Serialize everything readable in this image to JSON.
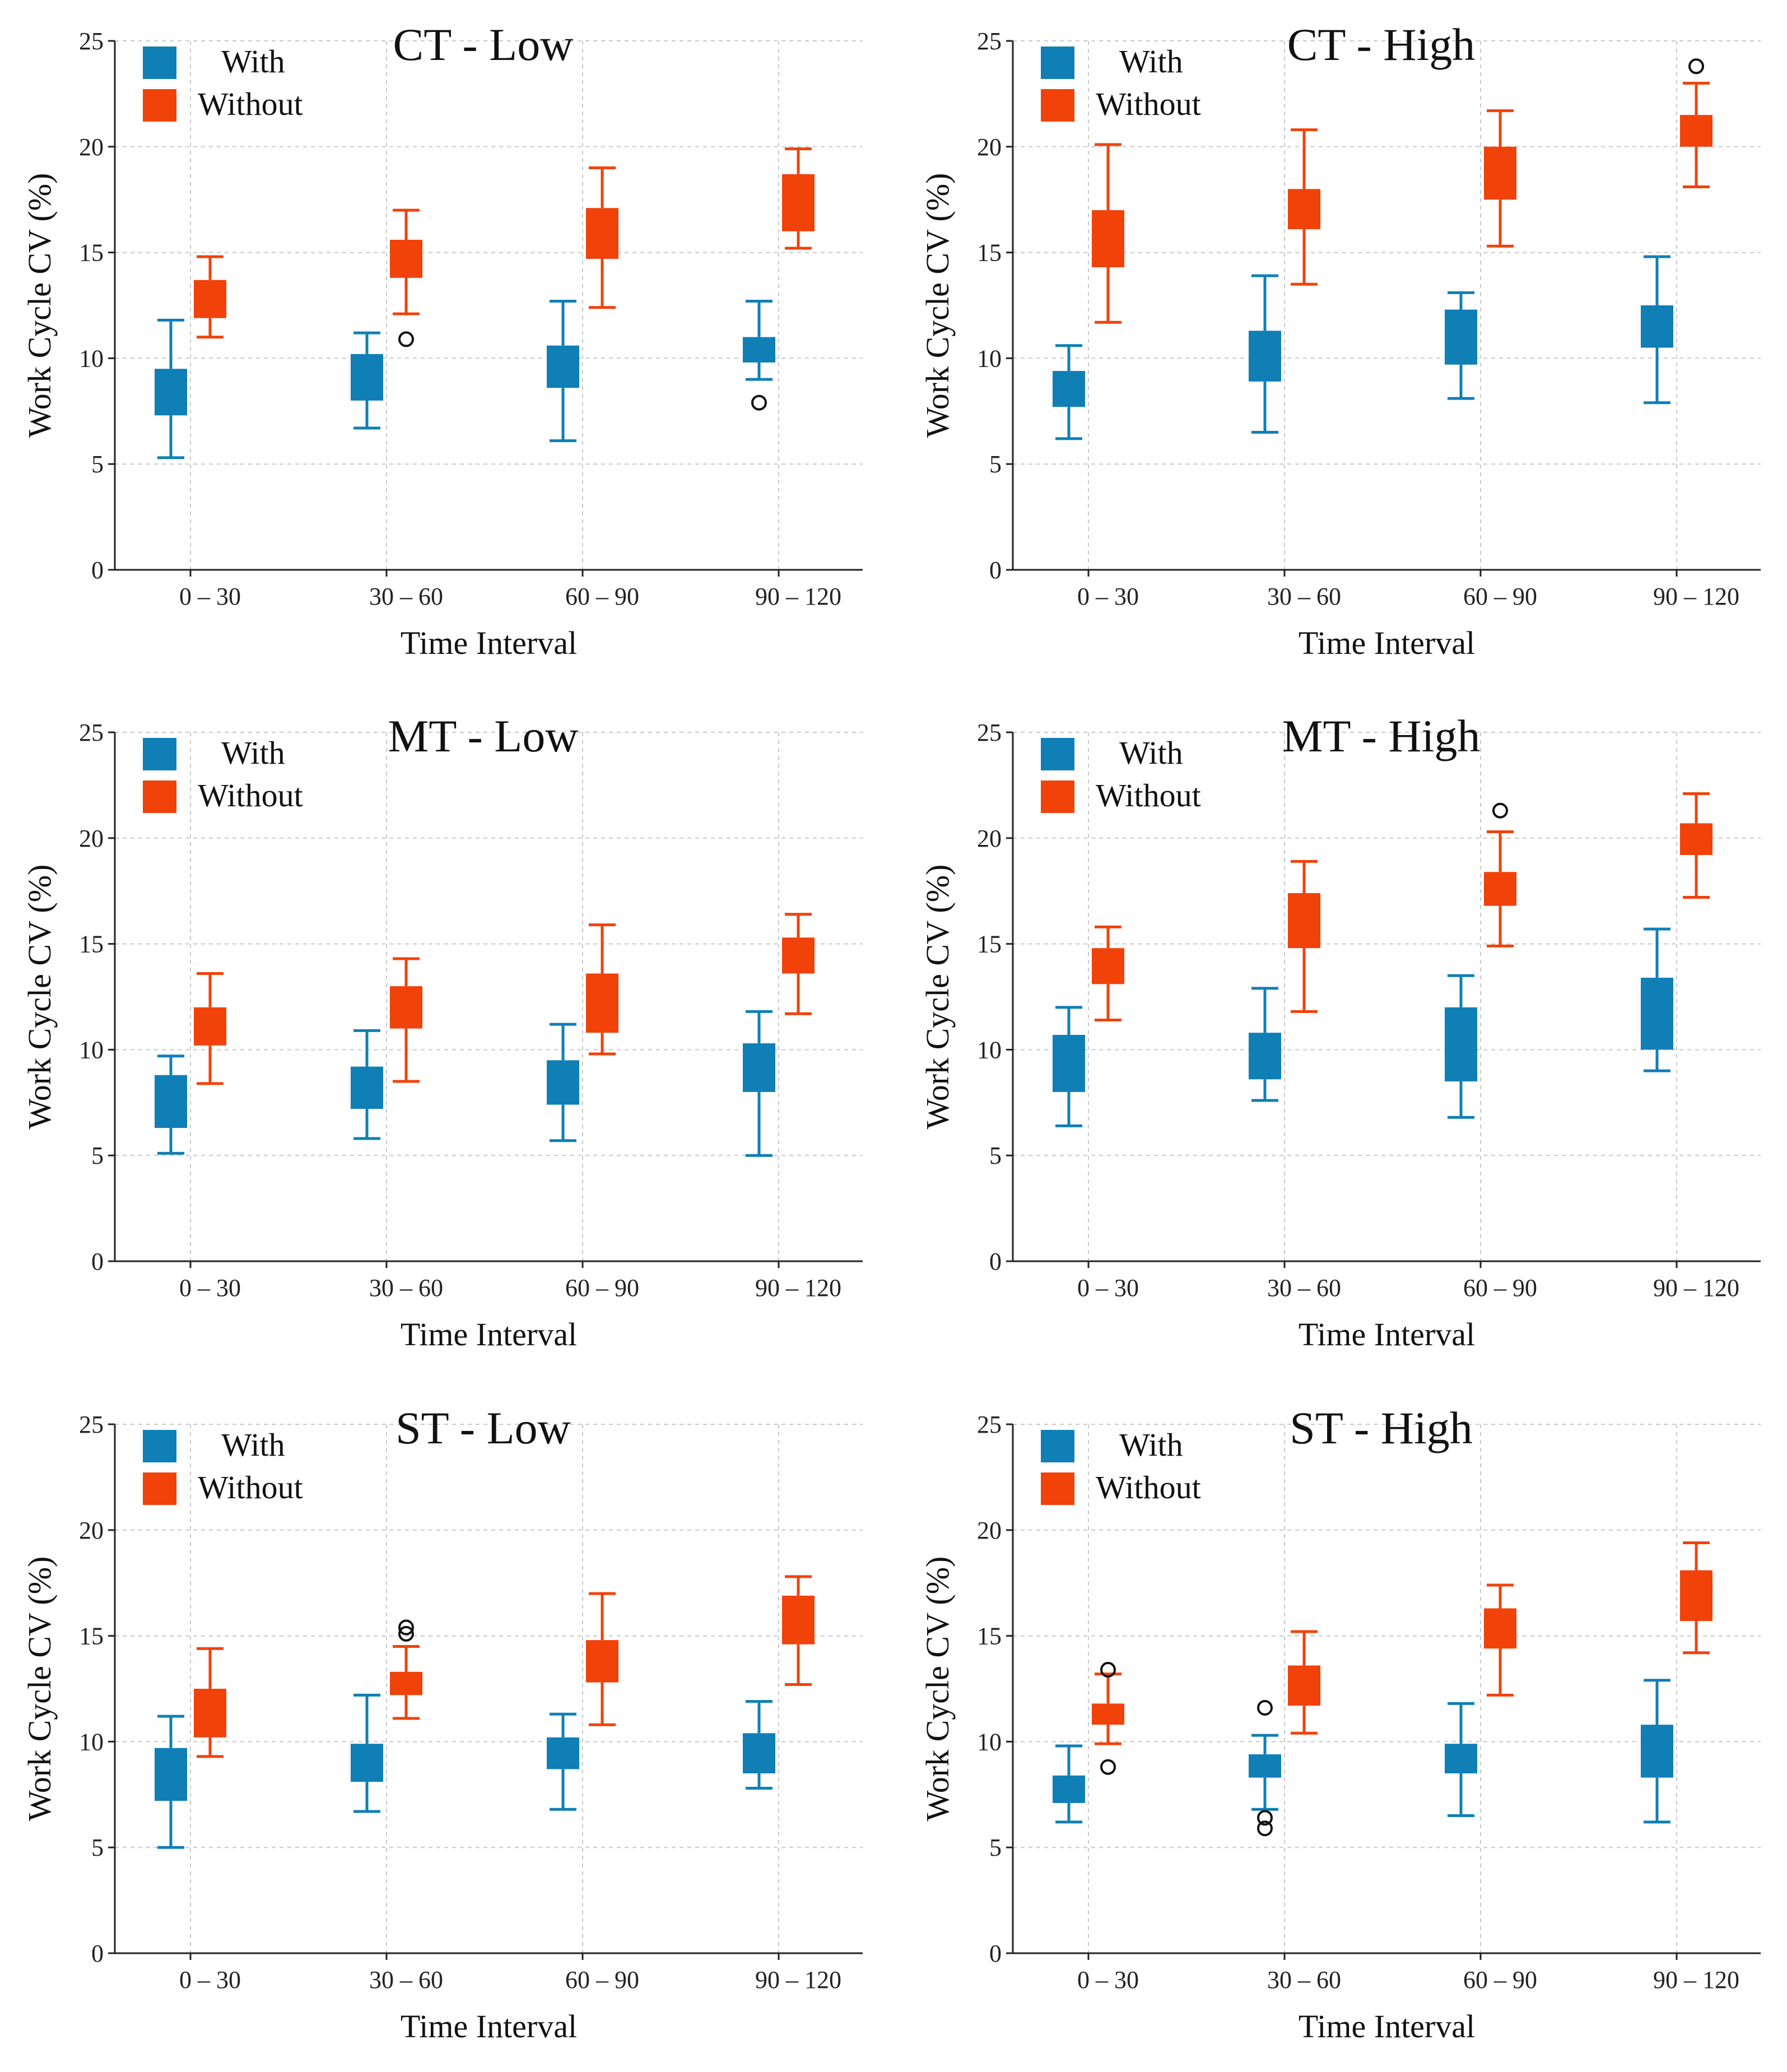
{
  "chart_data": [
    {
      "type": "box",
      "title": "CT - Low",
      "xlabel": "Time Interval",
      "ylabel": "Work Cycle CV (%)",
      "ylim": [
        0,
        25
      ],
      "yticks": [
        0,
        5,
        10,
        15,
        20,
        25
      ],
      "categories": [
        "0 – 30",
        "30 – 60",
        "60 – 90",
        "90 – 120"
      ],
      "legend": {
        "position": "top-left",
        "entries": [
          "With",
          "Without"
        ]
      },
      "series": [
        {
          "name": "With",
          "color": "#0f7fb5",
          "boxes": [
            {
              "whisker_low": 5.3,
              "q1": 7.3,
              "q3": 9.5,
              "whisker_high": 11.8,
              "outliers": []
            },
            {
              "whisker_low": 6.7,
              "q1": 8.0,
              "q3": 10.2,
              "whisker_high": 11.2,
              "outliers": []
            },
            {
              "whisker_low": 6.1,
              "q1": 8.6,
              "q3": 10.6,
              "whisker_high": 12.7,
              "outliers": []
            },
            {
              "whisker_low": 9.0,
              "q1": 9.8,
              "q3": 11.0,
              "whisker_high": 12.7,
              "outliers": [
                7.9
              ]
            }
          ]
        },
        {
          "name": "Without",
          "color": "#f1420a",
          "boxes": [
            {
              "whisker_low": 11.0,
              "q1": 11.9,
              "q3": 13.7,
              "whisker_high": 14.8,
              "outliers": []
            },
            {
              "whisker_low": 12.1,
              "q1": 13.8,
              "q3": 15.6,
              "whisker_high": 17.0,
              "outliers": [
                10.9
              ]
            },
            {
              "whisker_low": 12.4,
              "q1": 14.7,
              "q3": 17.1,
              "whisker_high": 19.0,
              "outliers": []
            },
            {
              "whisker_low": 15.2,
              "q1": 16.0,
              "q3": 18.7,
              "whisker_high": 19.9,
              "outliers": []
            }
          ]
        }
      ]
    },
    {
      "type": "box",
      "title": "CT - High",
      "xlabel": "Time Interval",
      "ylabel": "Work Cycle CV (%)",
      "ylim": [
        0,
        25
      ],
      "yticks": [
        0,
        5,
        10,
        15,
        20,
        25
      ],
      "categories": [
        "0 – 30",
        "30 – 60",
        "60 – 90",
        "90 – 120"
      ],
      "legend": {
        "position": "top-left",
        "entries": [
          "With",
          "Without"
        ]
      },
      "series": [
        {
          "name": "With",
          "color": "#0f7fb5",
          "boxes": [
            {
              "whisker_low": 6.2,
              "q1": 7.7,
              "q3": 9.4,
              "whisker_high": 10.6,
              "outliers": []
            },
            {
              "whisker_low": 6.5,
              "q1": 8.9,
              "q3": 11.3,
              "whisker_high": 13.9,
              "outliers": []
            },
            {
              "whisker_low": 8.1,
              "q1": 9.7,
              "q3": 12.3,
              "whisker_high": 13.1,
              "outliers": []
            },
            {
              "whisker_low": 7.9,
              "q1": 10.5,
              "q3": 12.5,
              "whisker_high": 14.8,
              "outliers": []
            }
          ]
        },
        {
          "name": "Without",
          "color": "#f1420a",
          "boxes": [
            {
              "whisker_low": 11.7,
              "q1": 14.3,
              "q3": 17.0,
              "whisker_high": 20.1,
              "outliers": []
            },
            {
              "whisker_low": 13.5,
              "q1": 16.1,
              "q3": 18.0,
              "whisker_high": 20.8,
              "outliers": []
            },
            {
              "whisker_low": 15.3,
              "q1": 17.5,
              "q3": 20.0,
              "whisker_high": 21.7,
              "outliers": []
            },
            {
              "whisker_low": 18.1,
              "q1": 20.0,
              "q3": 21.5,
              "whisker_high": 23.0,
              "outliers": [
                23.8
              ]
            }
          ]
        }
      ]
    },
    {
      "type": "box",
      "title": "MT - Low",
      "xlabel": "Time Interval",
      "ylabel": "Work Cycle CV (%)",
      "ylim": [
        0,
        25
      ],
      "yticks": [
        0,
        5,
        10,
        15,
        20,
        25
      ],
      "categories": [
        "0 – 30",
        "30 – 60",
        "60 – 90",
        "90 – 120"
      ],
      "legend": {
        "position": "top-left",
        "entries": [
          "With",
          "Without"
        ]
      },
      "series": [
        {
          "name": "With",
          "color": "#0f7fb5",
          "boxes": [
            {
              "whisker_low": 5.1,
              "q1": 6.3,
              "q3": 8.8,
              "whisker_high": 9.7,
              "outliers": []
            },
            {
              "whisker_low": 5.8,
              "q1": 7.2,
              "q3": 9.2,
              "whisker_high": 10.9,
              "outliers": []
            },
            {
              "whisker_low": 5.7,
              "q1": 7.4,
              "q3": 9.5,
              "whisker_high": 11.2,
              "outliers": []
            },
            {
              "whisker_low": 5.0,
              "q1": 8.0,
              "q3": 10.3,
              "whisker_high": 11.8,
              "outliers": []
            }
          ]
        },
        {
          "name": "Without",
          "color": "#f1420a",
          "boxes": [
            {
              "whisker_low": 8.4,
              "q1": 10.2,
              "q3": 12.0,
              "whisker_high": 13.6,
              "outliers": []
            },
            {
              "whisker_low": 8.5,
              "q1": 11.0,
              "q3": 13.0,
              "whisker_high": 14.3,
              "outliers": []
            },
            {
              "whisker_low": 9.8,
              "q1": 10.8,
              "q3": 13.6,
              "whisker_high": 15.9,
              "outliers": []
            },
            {
              "whisker_low": 11.7,
              "q1": 13.6,
              "q3": 15.3,
              "whisker_high": 16.4,
              "outliers": []
            }
          ]
        }
      ]
    },
    {
      "type": "box",
      "title": "MT - High",
      "xlabel": "Time Interval",
      "ylabel": "Work Cycle CV (%)",
      "ylim": [
        0,
        25
      ],
      "yticks": [
        0,
        5,
        10,
        15,
        20,
        25
      ],
      "categories": [
        "0 – 30",
        "30 – 60",
        "60 – 90",
        "90 – 120"
      ],
      "legend": {
        "position": "top-left",
        "entries": [
          "With",
          "Without"
        ]
      },
      "series": [
        {
          "name": "With",
          "color": "#0f7fb5",
          "boxes": [
            {
              "whisker_low": 6.4,
              "q1": 8.0,
              "q3": 10.7,
              "whisker_high": 12.0,
              "outliers": []
            },
            {
              "whisker_low": 7.6,
              "q1": 8.6,
              "q3": 10.8,
              "whisker_high": 12.9,
              "outliers": []
            },
            {
              "whisker_low": 6.8,
              "q1": 8.5,
              "q3": 12.0,
              "whisker_high": 13.5,
              "outliers": []
            },
            {
              "whisker_low": 9.0,
              "q1": 10.0,
              "q3": 13.4,
              "whisker_high": 15.7,
              "outliers": []
            }
          ]
        },
        {
          "name": "Without",
          "color": "#f1420a",
          "boxes": [
            {
              "whisker_low": 11.4,
              "q1": 13.1,
              "q3": 14.8,
              "whisker_high": 15.8,
              "outliers": []
            },
            {
              "whisker_low": 11.8,
              "q1": 14.8,
              "q3": 17.4,
              "whisker_high": 18.9,
              "outliers": []
            },
            {
              "whisker_low": 14.9,
              "q1": 16.8,
              "q3": 18.4,
              "whisker_high": 20.3,
              "outliers": [
                21.3
              ]
            },
            {
              "whisker_low": 17.2,
              "q1": 19.2,
              "q3": 20.7,
              "whisker_high": 22.1,
              "outliers": []
            }
          ]
        }
      ]
    },
    {
      "type": "box",
      "title": "ST - Low",
      "xlabel": "Time Interval",
      "ylabel": "Work Cycle CV (%)",
      "ylim": [
        0,
        25
      ],
      "yticks": [
        0,
        5,
        10,
        15,
        20,
        25
      ],
      "categories": [
        "0 – 30",
        "30 – 60",
        "60 – 90",
        "90 – 120"
      ],
      "legend": {
        "position": "top-left",
        "entries": [
          "With",
          "Without"
        ]
      },
      "series": [
        {
          "name": "With",
          "color": "#0f7fb5",
          "boxes": [
            {
              "whisker_low": 5.0,
              "q1": 7.2,
              "q3": 9.7,
              "whisker_high": 11.2,
              "outliers": []
            },
            {
              "whisker_low": 6.7,
              "q1": 8.1,
              "q3": 9.9,
              "whisker_high": 12.2,
              "outliers": []
            },
            {
              "whisker_low": 6.8,
              "q1": 8.7,
              "q3": 10.2,
              "whisker_high": 11.3,
              "outliers": []
            },
            {
              "whisker_low": 7.8,
              "q1": 8.5,
              "q3": 10.4,
              "whisker_high": 11.9,
              "outliers": []
            }
          ]
        },
        {
          "name": "Without",
          "color": "#f1420a",
          "boxes": [
            {
              "whisker_low": 9.3,
              "q1": 10.2,
              "q3": 12.5,
              "whisker_high": 14.4,
              "outliers": []
            },
            {
              "whisker_low": 11.1,
              "q1": 12.2,
              "q3": 13.3,
              "whisker_high": 14.5,
              "outliers": [
                15.1,
                15.4
              ]
            },
            {
              "whisker_low": 10.8,
              "q1": 12.8,
              "q3": 14.8,
              "whisker_high": 17.0,
              "outliers": []
            },
            {
              "whisker_low": 12.7,
              "q1": 14.6,
              "q3": 16.9,
              "whisker_high": 17.8,
              "outliers": []
            }
          ]
        }
      ]
    },
    {
      "type": "box",
      "title": "ST - High",
      "xlabel": "Time Interval",
      "ylabel": "Work Cycle CV (%)",
      "ylim": [
        0,
        25
      ],
      "yticks": [
        0,
        5,
        10,
        15,
        20,
        25
      ],
      "categories": [
        "0 – 30",
        "30 – 60",
        "60 – 90",
        "90 – 120"
      ],
      "legend": {
        "position": "top-left",
        "entries": [
          "With",
          "Without"
        ]
      },
      "series": [
        {
          "name": "With",
          "color": "#0f7fb5",
          "boxes": [
            {
              "whisker_low": 6.2,
              "q1": 7.1,
              "q3": 8.4,
              "whisker_high": 9.8,
              "outliers": []
            },
            {
              "whisker_low": 6.8,
              "q1": 8.3,
              "q3": 9.4,
              "whisker_high": 10.3,
              "outliers": [
                5.9,
                6.4,
                11.6
              ]
            },
            {
              "whisker_low": 6.5,
              "q1": 8.5,
              "q3": 9.9,
              "whisker_high": 11.8,
              "outliers": []
            },
            {
              "whisker_low": 6.2,
              "q1": 8.3,
              "q3": 10.8,
              "whisker_high": 12.9,
              "outliers": []
            }
          ]
        },
        {
          "name": "Without",
          "color": "#f1420a",
          "boxes": [
            {
              "whisker_low": 9.9,
              "q1": 10.8,
              "q3": 11.8,
              "whisker_high": 13.2,
              "outliers": [
                8.8,
                13.4
              ]
            },
            {
              "whisker_low": 10.4,
              "q1": 11.7,
              "q3": 13.6,
              "whisker_high": 15.2,
              "outliers": []
            },
            {
              "whisker_low": 12.2,
              "q1": 14.4,
              "q3": 16.3,
              "whisker_high": 17.4,
              "outliers": []
            },
            {
              "whisker_low": 14.2,
              "q1": 15.7,
              "q3": 18.1,
              "whisker_high": 19.4,
              "outliers": []
            }
          ]
        }
      ]
    }
  ]
}
